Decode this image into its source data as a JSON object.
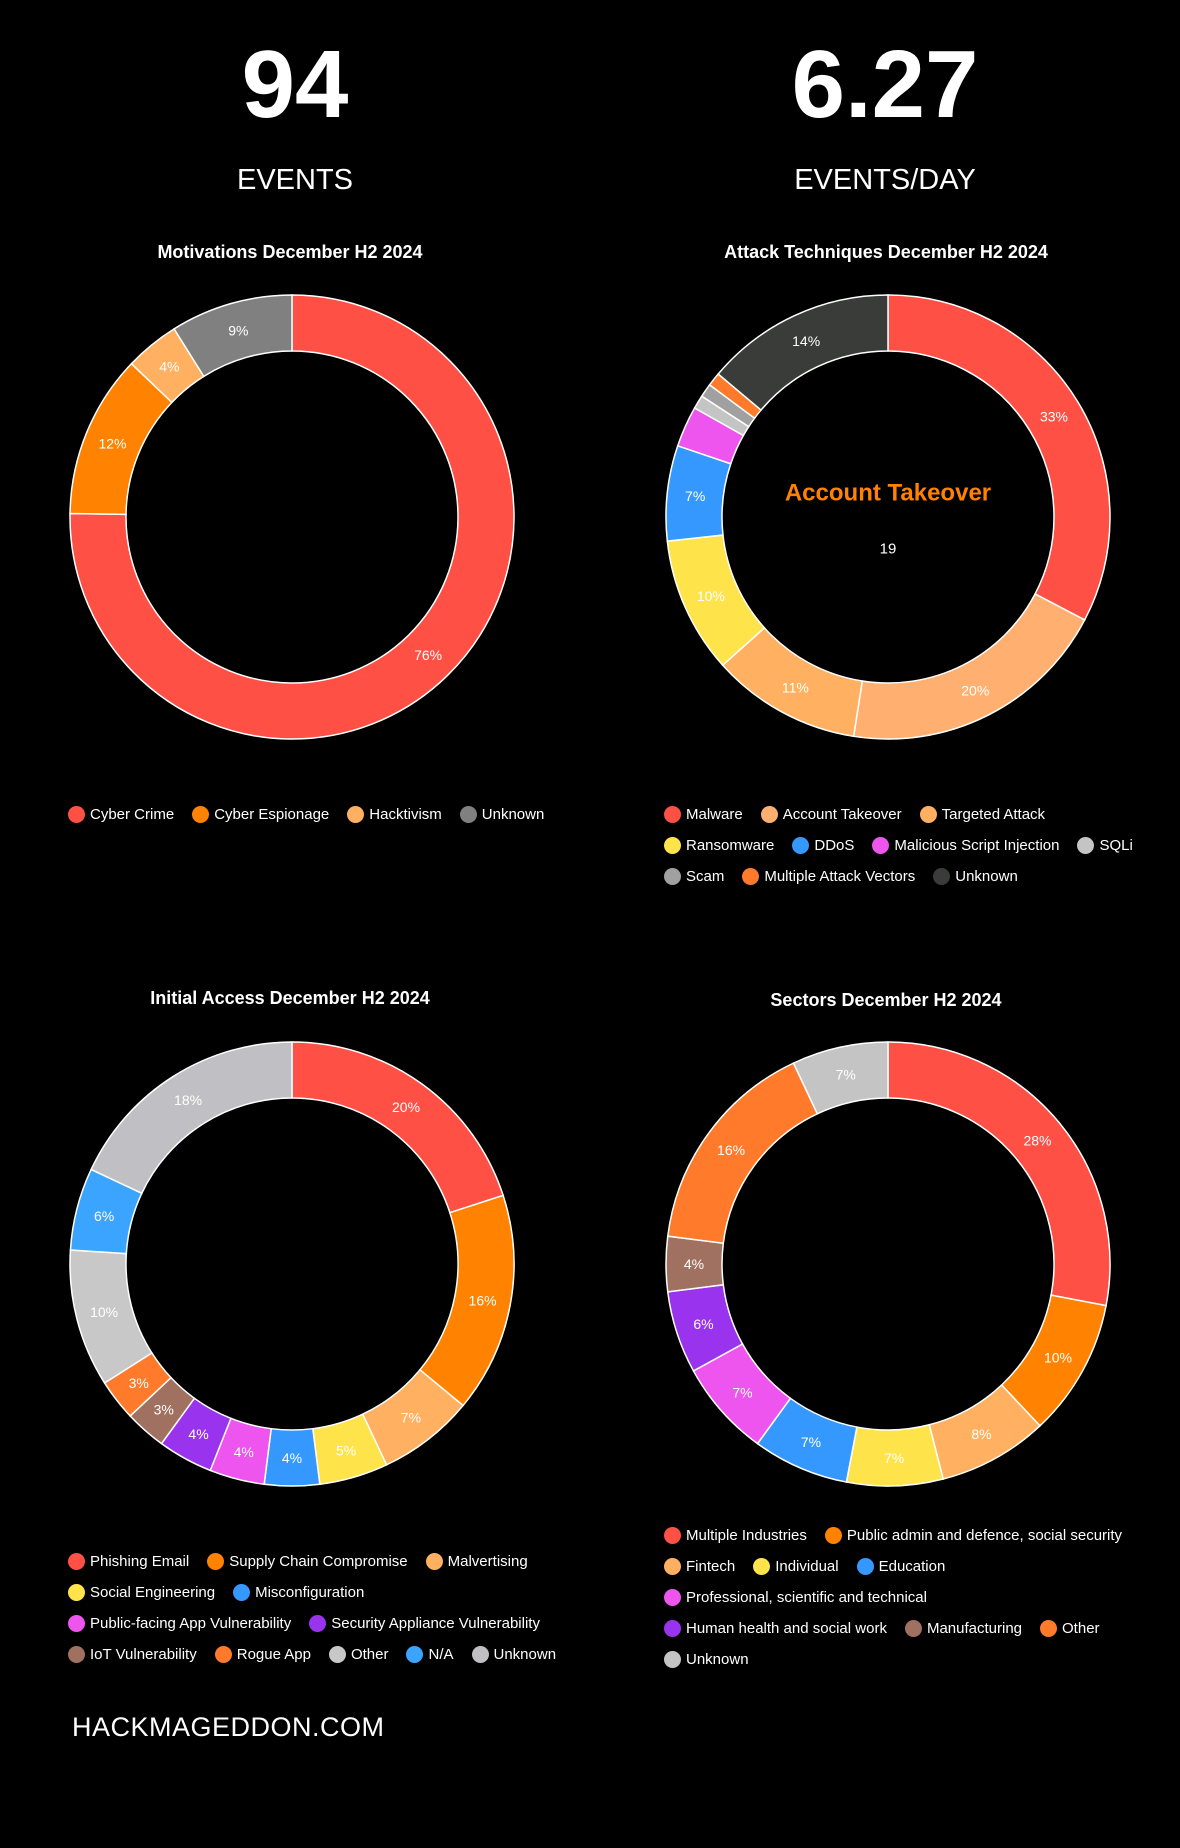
{
  "stats": {
    "events": {
      "value": "94",
      "label": "EVENTS"
    },
    "per_day": {
      "value": "6.27",
      "label": "EVENTS/DAY"
    }
  },
  "chart_data": [
    {
      "type": "donut",
      "title": "Motivations December H2 2024",
      "categories": [
        "Cyber Crime",
        "Cyber Espionage",
        "Hacktivism",
        "Unknown"
      ],
      "values": [
        76,
        12,
        4,
        9
      ],
      "labels": [
        "76%",
        "12%",
        "4%",
        "9%"
      ],
      "colors": [
        "#ff5045",
        "#ff8200",
        "#ffb060",
        "#808080"
      ],
      "legend_position": "bottom-left"
    },
    {
      "type": "donut",
      "title": "Attack Techniques December H2 2024",
      "categories": [
        "Malware",
        "Account Takeover",
        "Targeted Attack",
        "Ransomware",
        "DDoS",
        "Malicious Script Injection",
        "SQLi",
        "Scam",
        "Multiple Attack Vectors",
        "Unknown"
      ],
      "values": [
        33,
        20,
        11,
        10,
        7,
        3,
        1,
        1,
        1,
        14
      ],
      "labels": [
        "33%",
        "20%",
        "11%",
        "10%",
        "7%",
        "",
        "",
        "",
        "",
        "14%"
      ],
      "colors": [
        "#ff5045",
        "#ffb070",
        "#ffb060",
        "#ffe34a",
        "#3498ff",
        "#ee55ee",
        "#c4c4c4",
        "#a0a0a0",
        "#ff7a2a",
        "#3a3c3a"
      ],
      "center_label": "Account Takeover",
      "center_value": "19",
      "center_color": "#ff8200",
      "legend_position": "bottom-left"
    },
    {
      "type": "donut",
      "title": "Initial Access December H2 2024",
      "categories": [
        "Phishing Email",
        "Supply Chain Compromise",
        "Malvertising",
        "Social Engineering",
        "Misconfiguration",
        "Public-facing App Vulnerability",
        "Security Appliance Vulnerability",
        "IoT Vulnerability",
        "Rogue App",
        "Other",
        "N/A",
        "Unknown"
      ],
      "values": [
        20,
        16,
        7,
        5,
        4,
        4,
        4,
        3,
        3,
        10,
        6,
        18
      ],
      "labels": [
        "20%",
        "16%",
        "7%",
        "5%",
        "4%",
        "4%",
        "4%",
        "3%",
        "3%",
        "10%",
        "6%",
        "18%"
      ],
      "colors": [
        "#ff5045",
        "#ff8200",
        "#ffb060",
        "#ffe34a",
        "#3498ff",
        "#ee55ee",
        "#9a33ee",
        "#a07060",
        "#ff7a2a",
        "#c8c8c8",
        "#3aa4ff",
        "#c0c0c4"
      ],
      "legend_position": "bottom-left"
    },
    {
      "type": "donut",
      "title": "Sectors December H2 2024",
      "categories": [
        "Multiple Industries",
        "Public admin and defence, social security",
        "Fintech",
        "Individual",
        "Education",
        "Professional, scientific and technical",
        "Human health and social work",
        "Manufacturing",
        "Other",
        "Unknown"
      ],
      "values": [
        28,
        10,
        8,
        7,
        7,
        7,
        6,
        4,
        16,
        7
      ],
      "labels": [
        "28%",
        "10%",
        "8%",
        "7%",
        "7%",
        "7%",
        "6%",
        "4%",
        "16%",
        "7%"
      ],
      "colors": [
        "#ff5045",
        "#ff8200",
        "#ffb060",
        "#ffe34a",
        "#3498ff",
        "#ee55ee",
        "#9a33ee",
        "#a07060",
        "#ff7a2a",
        "#c4c4c4"
      ],
      "legend_position": "bottom-left"
    }
  ],
  "footer": {
    "watermark": "HACKMAGEDDON.COM"
  }
}
